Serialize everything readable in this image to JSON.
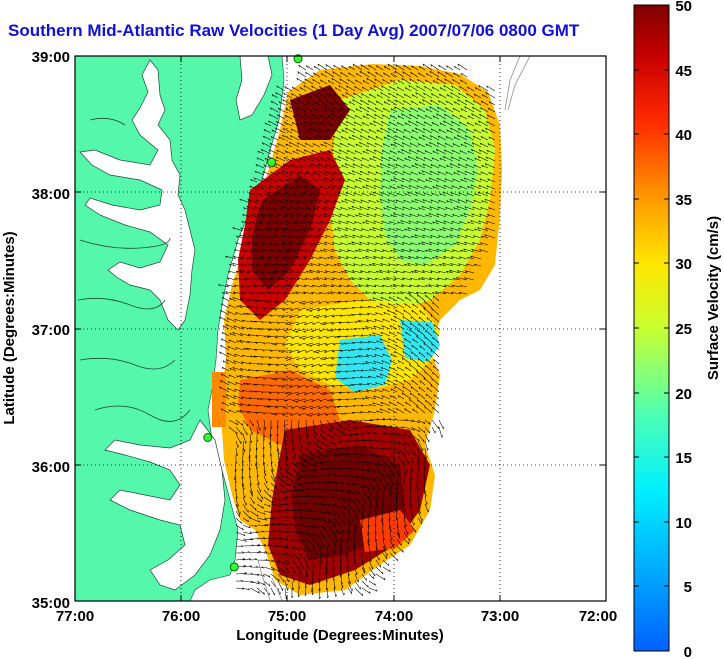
{
  "title": "Southern Mid-Atlantic Raw Velocities (1 Day Avg) 2007/07/06 0800 GMT",
  "map": {
    "x_axis_label": "Longitude (Degrees:Minutes)",
    "y_axis_label": "Latitude (Degrees:Minutes)",
    "lon_ticks": [
      "77:00",
      "76:00",
      "75:00",
      "74:00",
      "73:00",
      "72:00"
    ],
    "lat_ticks": [
      "39:00",
      "38:00",
      "37:00",
      "36:00",
      "35:00"
    ],
    "lon_range": [
      -77,
      -72
    ],
    "lat_range": [
      35,
      39
    ],
    "land_color": "#55f7aa",
    "grid": "dotted"
  },
  "colorbar": {
    "label": "Surface Velocity (cm/s)",
    "ticks": [
      "50",
      "45",
      "40",
      "35",
      "30",
      "25",
      "20",
      "15",
      "10",
      "5",
      "0"
    ],
    "range": [
      0,
      50
    ],
    "colormap": "jet"
  },
  "stations": [
    {
      "lon": -74.9,
      "lat": 38.98
    },
    {
      "lon": -75.15,
      "lat": 38.22
    },
    {
      "lon": -75.75,
      "lat": 36.2
    },
    {
      "lon": -75.5,
      "lat": 35.25
    }
  ]
}
